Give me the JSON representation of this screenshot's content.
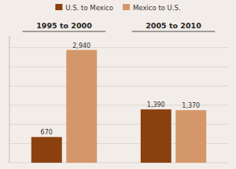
{
  "chart_data": {
    "type": "bar",
    "categories": [
      "1995 to 2000",
      "2005 to 2010"
    ],
    "series": [
      {
        "name": "U.S. to Mexico",
        "color": "#8B4010",
        "values": [
          670,
          1390
        ],
        "value_labels": [
          "670",
          "1,390"
        ]
      },
      {
        "name": "Mexico to U.S.",
        "color": "#D4976A",
        "values": [
          2940,
          1370
        ],
        "value_labels": [
          "2,940",
          "1,370"
        ]
      }
    ],
    "ylim": [
      0,
      3300
    ],
    "yticks": [
      0,
      500,
      1000,
      1500,
      2000,
      2500,
      3000
    ],
    "grid": true,
    "legend": "top",
    "data_labels": true,
    "tick_labels": false
  }
}
